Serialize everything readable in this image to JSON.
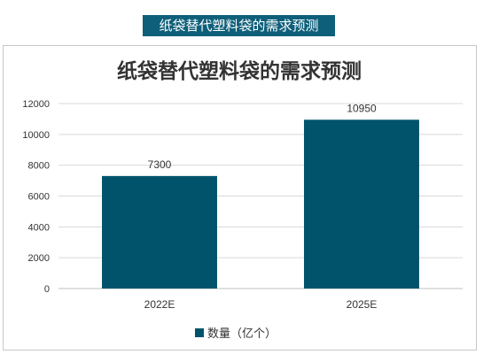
{
  "banner": {
    "text": "纸袋替代塑料袋的需求预测"
  },
  "colors": {
    "bar": "#00536b",
    "banner": "#0e5f7a",
    "grid": "#d9d9d9"
  },
  "chart_data": {
    "type": "bar",
    "title": "纸袋替代塑料袋的需求预测",
    "categories": [
      "2022E",
      "2025E"
    ],
    "series": [
      {
        "name": "数量（亿个）",
        "values": [
          7300,
          10950
        ]
      }
    ],
    "ylim": [
      0,
      12000
    ],
    "yticks": [
      0,
      2000,
      4000,
      6000,
      8000,
      10000,
      12000
    ],
    "grid": true,
    "legend": "bottom",
    "data_labels": true
  }
}
